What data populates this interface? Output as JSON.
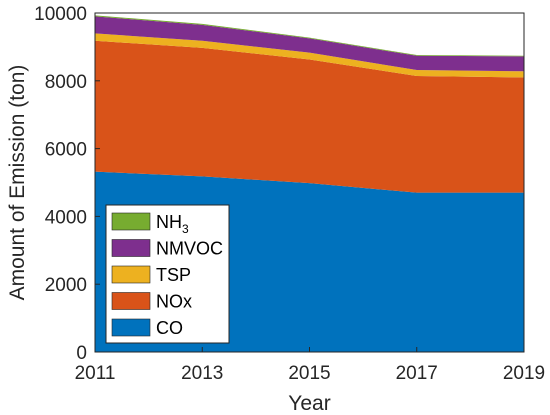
{
  "chart_data": {
    "type": "area",
    "stacked": true,
    "x": [
      2011,
      2013,
      2015,
      2017,
      2019
    ],
    "xlabel": "Year",
    "ylabel": "Amount of Emission (ton)",
    "xlim": [
      2011,
      2019
    ],
    "ylim": [
      0,
      10000
    ],
    "xticks": [
      "2011",
      "2013",
      "2015",
      "2017",
      "2019"
    ],
    "yticks": [
      "0",
      "2000",
      "4000",
      "6000",
      "8000",
      "10000"
    ],
    "grid": false,
    "legend_position": "bottom-left",
    "series": [
      {
        "name": "CO",
        "values": [
          5320,
          5180,
          4980,
          4700,
          4700
        ],
        "color": "#0072BD"
      },
      {
        "name": "NOx",
        "values": [
          3860,
          3790,
          3650,
          3440,
          3400
        ],
        "color": "#D95319"
      },
      {
        "name": "TSP",
        "values": [
          220,
          210,
          200,
          180,
          180
        ],
        "color": "#EDB120"
      },
      {
        "name": "NMVOC",
        "values": [
          500,
          470,
          420,
          420,
          440
        ],
        "color": "#7E2F8E"
      },
      {
        "name": "NH3",
        "values": [
          30,
          30,
          25,
          20,
          20
        ],
        "color": "#77AC30"
      }
    ],
    "legend": [
      {
        "base": "NH",
        "sub": "3",
        "color": "#77AC30"
      },
      {
        "base": "NMVOC",
        "sub": "",
        "color": "#7E2F8E"
      },
      {
        "base": "TSP",
        "sub": "",
        "color": "#EDB120"
      },
      {
        "base": "NOx",
        "sub": "",
        "color": "#D95319"
      },
      {
        "base": "CO",
        "sub": "",
        "color": "#0072BD"
      }
    ]
  }
}
